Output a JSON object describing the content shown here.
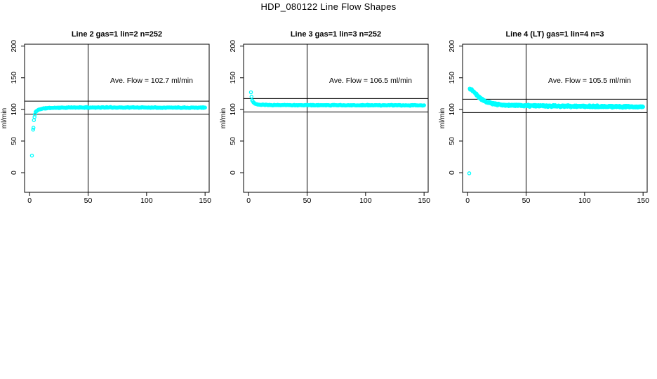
{
  "window": {
    "title": "HDP_080122  Line Flow Shapes"
  },
  "colors": {
    "point": "#00FFFF",
    "axis": "#000000",
    "text": "#000000",
    "background": "#FFFFFF"
  },
  "chart_data": [
    {
      "type": "scatter",
      "title": "Line 2 gas=1 lin=2 n=252",
      "annotation": "Ave. Flow =  102.7  ml/min",
      "ave_flow_ml_min": 102.7,
      "n_points_stated": 252,
      "ylabel": "ml/min",
      "xlabel": "",
      "x_ticks": [
        0,
        50,
        100,
        150
      ],
      "y_ticks": [
        0,
        50,
        100,
        150,
        200
      ],
      "xlim": [
        -4.3,
        153.5
      ],
      "ylim": [
        -31,
        203
      ],
      "vline_x": 50,
      "hlines_y": [
        113.0,
        92.4
      ],
      "curve": [
        [
          4.5,
          92
        ],
        [
          5,
          95.5
        ],
        [
          6,
          97.5
        ],
        [
          8,
          99.8
        ],
        [
          10,
          100.9
        ],
        [
          13,
          101.7
        ],
        [
          16,
          102.2
        ],
        [
          20,
          102.5
        ],
        [
          25,
          102.7
        ],
        [
          30,
          102.8
        ],
        [
          40,
          103.0
        ],
        [
          60,
          103.1
        ],
        [
          100,
          103.0
        ],
        [
          150,
          102.8
        ]
      ],
      "outliers": [
        [
          2,
          27
        ],
        [
          3,
          68
        ],
        [
          3.3,
          71
        ],
        [
          3.7,
          83
        ],
        [
          4.2,
          88
        ]
      ],
      "rendered_points": 248,
      "band_jitter": 0.8,
      "seed": 11
    },
    {
      "type": "scatter",
      "title": "Line 3 gas=1 lin=3 n=252",
      "annotation": "Ave. Flow =  106.5  ml/min",
      "ave_flow_ml_min": 106.5,
      "n_points_stated": 252,
      "ylabel": "ml/min",
      "xlabel": "",
      "x_ticks": [
        0,
        50,
        100,
        150
      ],
      "y_ticks": [
        0,
        50,
        100,
        150,
        200
      ],
      "xlim": [
        -4.3,
        153.5
      ],
      "ylim": [
        -31,
        203
      ],
      "vline_x": 50,
      "hlines_y": [
        117.2,
        95.9
      ],
      "curve": [
        [
          3,
          115
        ],
        [
          3.5,
          113
        ],
        [
          4,
          111.5
        ],
        [
          5,
          109.6
        ],
        [
          6,
          108.6
        ],
        [
          8,
          107.6
        ],
        [
          10,
          107.2
        ],
        [
          15,
          107.0
        ],
        [
          20,
          106.9
        ],
        [
          30,
          106.8
        ],
        [
          50,
          106.7
        ],
        [
          80,
          106.6
        ],
        [
          120,
          106.5
        ],
        [
          150,
          106.4
        ]
      ],
      "outliers": [
        [
          2,
          127
        ],
        [
          2.5,
          120
        ]
      ],
      "rendered_points": 250,
      "band_jitter": 0.8,
      "seed": 23
    },
    {
      "type": "scatter",
      "title": "Line 4 (LT) gas=1 lin=4 n=3",
      "annotation": "Ave. Flow =  105.5  ml/min",
      "ave_flow_ml_min": 105.5,
      "n_points_stated": 3,
      "ylabel": "ml/min",
      "xlabel": "",
      "x_ticks": [
        0,
        50,
        100,
        150
      ],
      "y_ticks": [
        0,
        50,
        100,
        150,
        200
      ],
      "xlim": [
        -4.3,
        153.5
      ],
      "ylim": [
        -31,
        203
      ],
      "vline_x": 50,
      "hlines_y": [
        116.1,
        95.0
      ],
      "curve": [
        [
          1.8,
          132
        ],
        [
          2.5,
          131.5
        ],
        [
          3.5,
          130.5
        ],
        [
          4.5,
          129
        ],
        [
          5.5,
          127.5
        ],
        [
          7,
          124.5
        ],
        [
          9,
          120.5
        ],
        [
          11,
          117.5
        ],
        [
          13,
          115
        ],
        [
          16,
          112.3
        ],
        [
          19,
          110.3
        ],
        [
          23,
          108.7
        ],
        [
          27,
          107.7
        ],
        [
          32,
          107.0
        ],
        [
          40,
          106.3
        ],
        [
          50,
          105.9
        ],
        [
          65,
          105.5
        ],
        [
          80,
          105.2
        ],
        [
          100,
          104.8
        ],
        [
          120,
          104.5
        ],
        [
          150,
          104.1
        ]
      ],
      "outliers": [
        [
          1.4,
          -1
        ]
      ],
      "rendered_points": 620,
      "band_jitter": 1.8,
      "seed": 37
    }
  ]
}
